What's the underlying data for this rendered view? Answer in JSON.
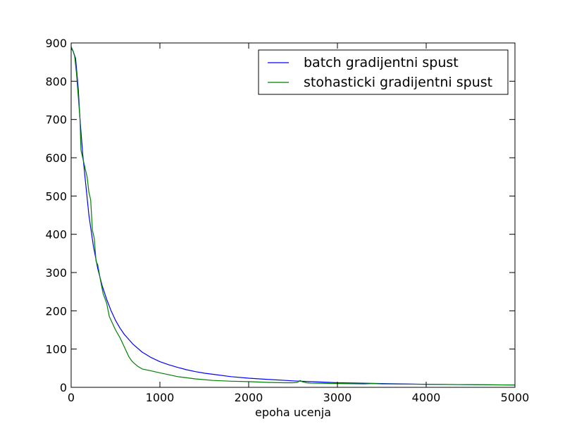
{
  "chart_data": {
    "type": "line",
    "title": "",
    "xlabel": "epoha ucenja",
    "ylabel": "",
    "xlim": [
      0,
      5000
    ],
    "ylim": [
      0,
      900
    ],
    "xticks": [
      0,
      1000,
      2000,
      3000,
      4000,
      5000
    ],
    "yticks": [
      0,
      100,
      200,
      300,
      400,
      500,
      600,
      700,
      800,
      900
    ],
    "grid": false,
    "legend_position": "top-right",
    "series": [
      {
        "name": "batch gradijentni spust",
        "color": "#0000ff",
        "x": [
          0,
          20,
          50,
          80,
          100,
          130,
          160,
          200,
          250,
          300,
          350,
          400,
          450,
          500,
          550,
          600,
          700,
          800,
          900,
          1000,
          1100,
          1200,
          1300,
          1400,
          1500,
          1600,
          1800,
          2000,
          2200,
          2500,
          2800,
          3000,
          3500,
          4000,
          4500,
          5000
        ],
        "y": [
          885,
          880,
          860,
          780,
          700,
          610,
          540,
          450,
          370,
          310,
          265,
          230,
          200,
          175,
          155,
          138,
          112,
          92,
          78,
          67,
          59,
          52,
          46,
          41,
          37,
          34,
          28,
          24,
          21,
          17,
          14,
          12,
          10,
          8,
          7,
          6
        ]
      },
      {
        "name": "stohasticki gradijentni spust",
        "color": "#008000",
        "x": [
          0,
          20,
          40,
          60,
          80,
          100,
          110,
          120,
          150,
          180,
          200,
          220,
          240,
          260,
          280,
          300,
          330,
          360,
          400,
          430,
          460,
          500,
          550,
          600,
          650,
          680,
          700,
          750,
          800,
          900,
          1000,
          1100,
          1200,
          1300,
          1400,
          1500,
          1600,
          1800,
          2000,
          2200,
          2400,
          2500,
          2550,
          2580,
          2600,
          2650,
          2700,
          3000,
          3300,
          3400,
          3500,
          4000,
          4500,
          5000
        ],
        "y": [
          890,
          880,
          865,
          820,
          760,
          700,
          620,
          610,
          580,
          550,
          510,
          490,
          410,
          390,
          330,
          320,
          280,
          245,
          220,
          185,
          170,
          150,
          130,
          105,
          80,
          70,
          65,
          55,
          48,
          43,
          38,
          33,
          28,
          25,
          22,
          20,
          18,
          16,
          15,
          13,
          12,
          12,
          13,
          18,
          15,
          12,
          11,
          10,
          9,
          10,
          9,
          8,
          7,
          6
        ]
      }
    ]
  }
}
